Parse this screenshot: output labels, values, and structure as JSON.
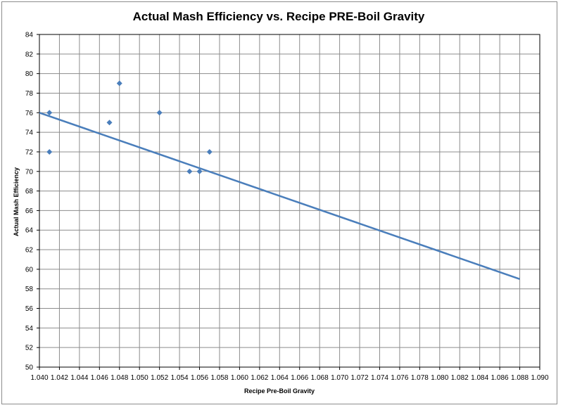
{
  "chart_data": {
    "type": "scatter",
    "title": "Actual Mash Efficiency vs. Recipe PRE-Boil Gravity",
    "xlabel": "Recipe Pre-Boil Gravity",
    "ylabel": "Actual Mash  Efficiency",
    "xlim": [
      1.04,
      1.09
    ],
    "ylim": [
      50,
      84
    ],
    "x_ticks": [
      "1.040",
      "1.042",
      "1.044",
      "1.046",
      "1.048",
      "1.050",
      "1.052",
      "1.054",
      "1.056",
      "1.058",
      "1.060",
      "1.062",
      "1.064",
      "1.066",
      "1.068",
      "1.070",
      "1.072",
      "1.074",
      "1.076",
      "1.078",
      "1.080",
      "1.082",
      "1.084",
      "1.086",
      "1.088",
      "1.090"
    ],
    "y_ticks": [
      "50",
      "52",
      "54",
      "56",
      "58",
      "60",
      "62",
      "64",
      "66",
      "68",
      "70",
      "72",
      "74",
      "76",
      "78",
      "80",
      "82",
      "84"
    ],
    "grid": true,
    "legend": "none",
    "marker_color": "#4a7ebb",
    "trendline_color": "#4a7ebb",
    "series": [
      {
        "points": [
          {
            "x": 1.041,
            "y": 76
          },
          {
            "x": 1.041,
            "y": 72
          },
          {
            "x": 1.047,
            "y": 75
          },
          {
            "x": 1.048,
            "y": 79
          },
          {
            "x": 1.052,
            "y": 76
          },
          {
            "x": 1.055,
            "y": 70
          },
          {
            "x": 1.056,
            "y": 70
          },
          {
            "x": 1.057,
            "y": 72
          }
        ]
      }
    ],
    "trendline": {
      "x": [
        1.04,
        1.088
      ],
      "y": [
        76,
        59
      ]
    }
  }
}
